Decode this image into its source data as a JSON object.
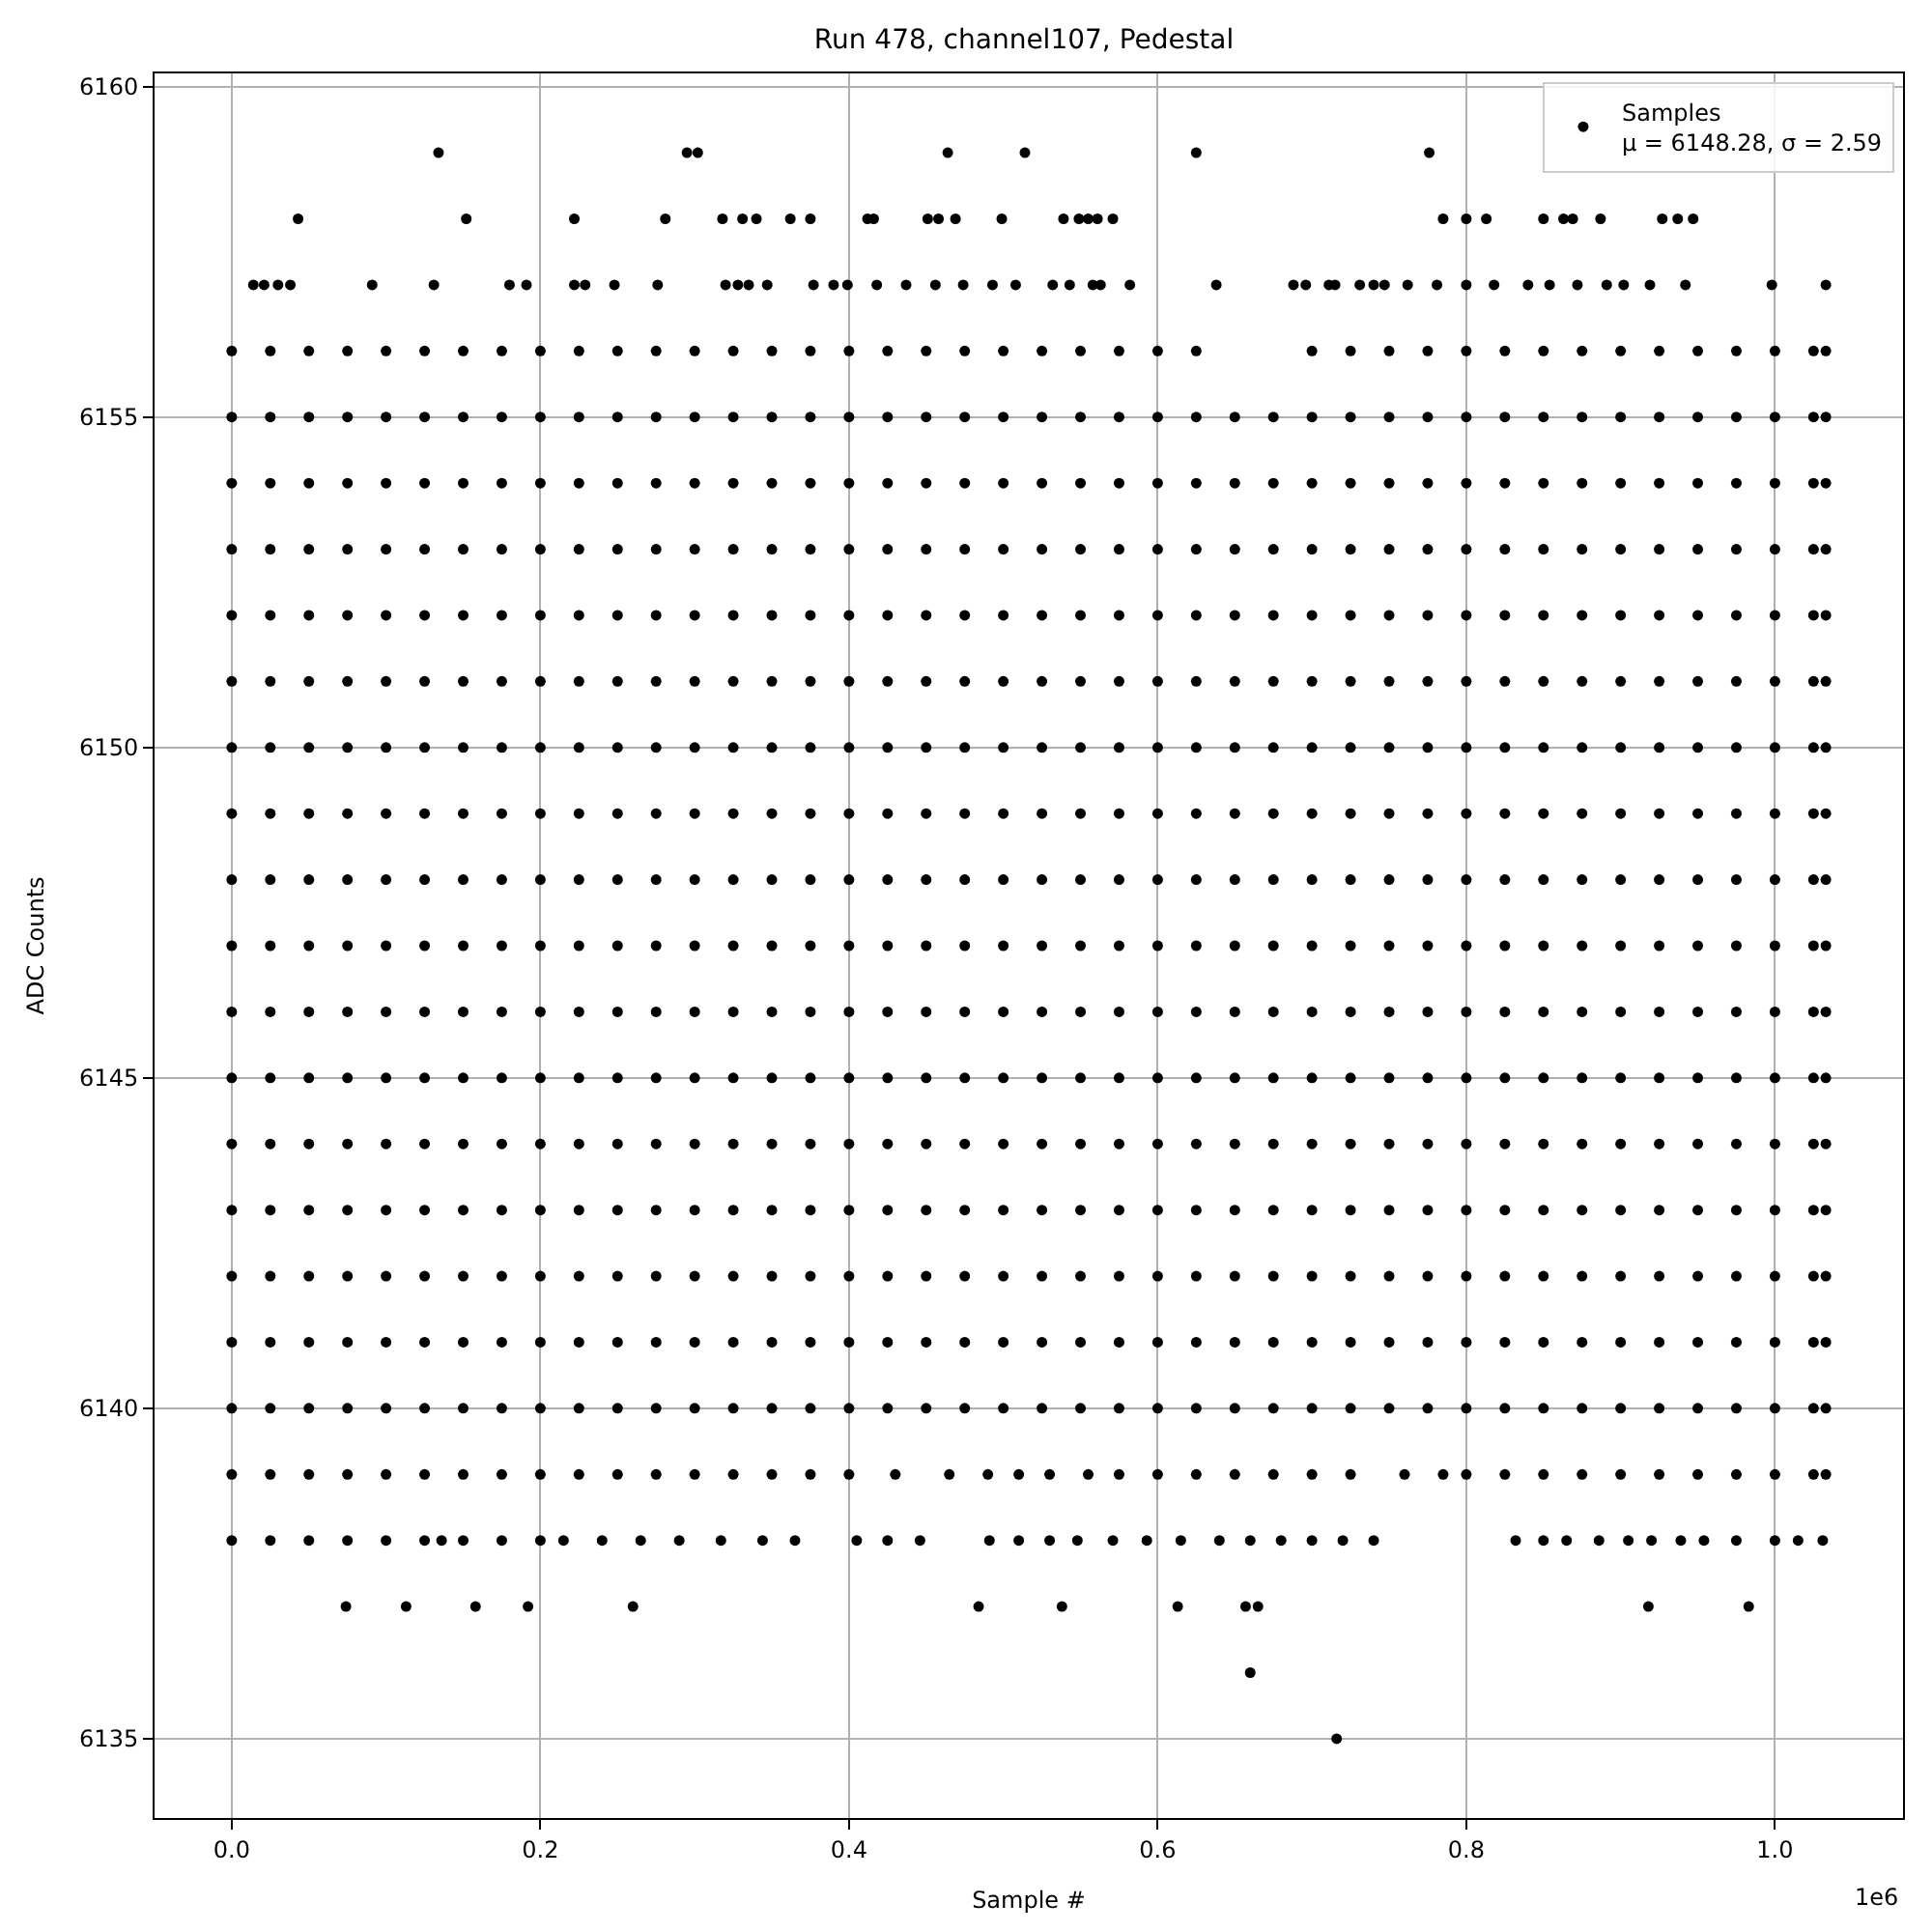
{
  "chart_data": {
    "type": "scatter",
    "title": "Run 478, channel107, Pedestal",
    "xlabel": "Sample #",
    "ylabel": "ADC Counts",
    "annotations": [
      "1e6"
    ],
    "xlim": [
      -0.05,
      1.083
    ],
    "ylim": [
      6133.8,
      6160.2
    ],
    "xticks": [
      {
        "value": 0,
        "label": "0.0"
      },
      0.2,
      0.4,
      0.6,
      0.8,
      {
        "value": 1,
        "label": "1.0"
      }
    ],
    "yticks": [
      6135,
      6140,
      6145,
      6150,
      6155,
      6160
    ],
    "grid": true,
    "legend": "top right",
    "marker": "circle",
    "x": [
      0,
      0.025,
      0.05,
      0.075,
      0.1,
      0.125,
      0.15,
      0.175,
      0.2,
      0.225,
      0.25,
      0.275,
      0.3,
      0.325,
      0.35,
      0.375,
      0.4,
      0.425,
      0.45,
      0.475,
      0.5,
      0.525,
      0.55,
      0.575,
      0.6,
      0.625,
      0.65,
      0.675,
      0.7,
      0.725,
      0.75,
      0.775,
      0.8,
      0.825,
      0.85,
      0.875,
      0.9,
      0.925,
      0.95,
      0.975,
      1.0,
      1.025,
      1.033
    ],
    "series": [
      {
        "name": "Samples\nμ = 6148.28, σ = 2.59",
        "color": "#000000",
        "values": [
          6150,
          6150,
          6150,
          6150,
          6150,
          6150,
          6150,
          6150,
          6150,
          6150,
          6150,
          6150,
          6150,
          6150,
          6150,
          6150,
          6150,
          6150,
          6150,
          6150,
          6150,
          6150,
          6150,
          6150,
          6150,
          6150,
          6150,
          6150,
          6150,
          6150,
          6150,
          6150,
          6150,
          6150,
          6150,
          6150,
          6150,
          6150,
          6150,
          6150,
          6150,
          6150,
          6150
        ]
      },
      {
        "color": "#000000",
        "values": [
          6140,
          6140,
          6140,
          6140,
          6140,
          6140,
          6140,
          6140,
          6140,
          6140,
          6140,
          6140,
          6140,
          6140,
          6140,
          6140,
          6140,
          6140,
          6140,
          6140,
          6140,
          6140,
          6140,
          6140,
          6140,
          6140,
          6140,
          6140,
          6140,
          6140,
          6140,
          6140,
          6140,
          6140,
          6140,
          6140,
          6140,
          6140,
          6140,
          6140,
          6140,
          6140,
          6140
        ]
      },
      {
        "color": "#000000",
        "values": [
          6141,
          6141,
          6141,
          6141,
          6141,
          6141,
          6141,
          6141,
          6141,
          6141,
          6141,
          6141,
          6141,
          6141,
          6141,
          6141,
          6141,
          6141,
          6141,
          6141,
          6141,
          6141,
          6141,
          6141,
          6141,
          6141,
          6141,
          6141,
          6141,
          6141,
          6141,
          6141,
          6141,
          6141,
          6141,
          6141,
          6141,
          6141,
          6141,
          6141,
          6141,
          6141,
          6141
        ]
      },
      {
        "color": "#000000",
        "values": [
          6142,
          6142,
          6142,
          6142,
          6142,
          6142,
          6142,
          6142,
          6142,
          6142,
          6142,
          6142,
          6142,
          6142,
          6142,
          6142,
          6142,
          6142,
          6142,
          6142,
          6142,
          6142,
          6142,
          6142,
          6142,
          6142,
          6142,
          6142,
          6142,
          6142,
          6142,
          6142,
          6142,
          6142,
          6142,
          6142,
          6142,
          6142,
          6142,
          6142,
          6142,
          6142,
          6142
        ]
      },
      {
        "color": "#000000",
        "values": [
          6143,
          6143,
          6143,
          6143,
          6143,
          6143,
          6143,
          6143,
          6143,
          6143,
          6143,
          6143,
          6143,
          6143,
          6143,
          6143,
          6143,
          6143,
          6143,
          6143,
          6143,
          6143,
          6143,
          6143,
          6143,
          6143,
          6143,
          6143,
          6143,
          6143,
          6143,
          6143,
          6143,
          6143,
          6143,
          6143,
          6143,
          6143,
          6143,
          6143,
          6143,
          6143,
          6143
        ]
      },
      {
        "color": "#000000",
        "values": [
          6144,
          6144,
          6144,
          6144,
          6144,
          6144,
          6144,
          6144,
          6144,
          6144,
          6144,
          6144,
          6144,
          6144,
          6144,
          6144,
          6144,
          6144,
          6144,
          6144,
          6144,
          6144,
          6144,
          6144,
          6144,
          6144,
          6144,
          6144,
          6144,
          6144,
          6144,
          6144,
          6144,
          6144,
          6144,
          6144,
          6144,
          6144,
          6144,
          6144,
          6144,
          6144,
          6144
        ]
      },
      {
        "color": "#000000",
        "values": [
          6145,
          6145,
          6145,
          6145,
          6145,
          6145,
          6145,
          6145,
          6145,
          6145,
          6145,
          6145,
          6145,
          6145,
          6145,
          6145,
          6145,
          6145,
          6145,
          6145,
          6145,
          6145,
          6145,
          6145,
          6145,
          6145,
          6145,
          6145,
          6145,
          6145,
          6145,
          6145,
          6145,
          6145,
          6145,
          6145,
          6145,
          6145,
          6145,
          6145,
          6145,
          6145,
          6145
        ]
      },
      {
        "color": "#000000",
        "values": [
          6146,
          6146,
          6146,
          6146,
          6146,
          6146,
          6146,
          6146,
          6146,
          6146,
          6146,
          6146,
          6146,
          6146,
          6146,
          6146,
          6146,
          6146,
          6146,
          6146,
          6146,
          6146,
          6146,
          6146,
          6146,
          6146,
          6146,
          6146,
          6146,
          6146,
          6146,
          6146,
          6146,
          6146,
          6146,
          6146,
          6146,
          6146,
          6146,
          6146,
          6146,
          6146,
          6146
        ]
      },
      {
        "color": "#000000",
        "values": [
          6147,
          6147,
          6147,
          6147,
          6147,
          6147,
          6147,
          6147,
          6147,
          6147,
          6147,
          6147,
          6147,
          6147,
          6147,
          6147,
          6147,
          6147,
          6147,
          6147,
          6147,
          6147,
          6147,
          6147,
          6147,
          6147,
          6147,
          6147,
          6147,
          6147,
          6147,
          6147,
          6147,
          6147,
          6147,
          6147,
          6147,
          6147,
          6147,
          6147,
          6147,
          6147,
          6147
        ]
      },
      {
        "color": "#000000",
        "values": [
          6148,
          6148,
          6148,
          6148,
          6148,
          6148,
          6148,
          6148,
          6148,
          6148,
          6148,
          6148,
          6148,
          6148,
          6148,
          6148,
          6148,
          6148,
          6148,
          6148,
          6148,
          6148,
          6148,
          6148,
          6148,
          6148,
          6148,
          6148,
          6148,
          6148,
          6148,
          6148,
          6148,
          6148,
          6148,
          6148,
          6148,
          6148,
          6148,
          6148,
          6148,
          6148,
          6148
        ]
      },
      {
        "color": "#000000",
        "values": [
          6149,
          6149,
          6149,
          6149,
          6149,
          6149,
          6149,
          6149,
          6149,
          6149,
          6149,
          6149,
          6149,
          6149,
          6149,
          6149,
          6149,
          6149,
          6149,
          6149,
          6149,
          6149,
          6149,
          6149,
          6149,
          6149,
          6149,
          6149,
          6149,
          6149,
          6149,
          6149,
          6149,
          6149,
          6149,
          6149,
          6149,
          6149,
          6149,
          6149,
          6149,
          6149,
          6149
        ]
      },
      {
        "color": "#000000",
        "values": [
          6151,
          6151,
          6151,
          6151,
          6151,
          6151,
          6151,
          6151,
          6151,
          6151,
          6151,
          6151,
          6151,
          6151,
          6151,
          6151,
          6151,
          6151,
          6151,
          6151,
          6151,
          6151,
          6151,
          6151,
          6151,
          6151,
          6151,
          6151,
          6151,
          6151,
          6151,
          6151,
          6151,
          6151,
          6151,
          6151,
          6151,
          6151,
          6151,
          6151,
          6151,
          6151,
          6151
        ]
      },
      {
        "color": "#000000",
        "values": [
          6152,
          6152,
          6152,
          6152,
          6152,
          6152,
          6152,
          6152,
          6152,
          6152,
          6152,
          6152,
          6152,
          6152,
          6152,
          6152,
          6152,
          6152,
          6152,
          6152,
          6152,
          6152,
          6152,
          6152,
          6152,
          6152,
          6152,
          6152,
          6152,
          6152,
          6152,
          6152,
          6152,
          6152,
          6152,
          6152,
          6152,
          6152,
          6152,
          6152,
          6152,
          6152,
          6152
        ]
      },
      {
        "color": "#000000",
        "values": [
          6153,
          6153,
          6153,
          6153,
          6153,
          6153,
          6153,
          6153,
          6153,
          6153,
          6153,
          6153,
          6153,
          6153,
          6153,
          6153,
          6153,
          6153,
          6153,
          6153,
          6153,
          6153,
          6153,
          6153,
          6153,
          6153,
          6153,
          6153,
          6153,
          6153,
          6153,
          6153,
          6153,
          6153,
          6153,
          6153,
          6153,
          6153,
          6153,
          6153,
          6153,
          6153,
          6153
        ]
      },
      {
        "color": "#000000",
        "values": [
          6154,
          6154,
          6154,
          6154,
          6154,
          6154,
          6154,
          6154,
          6154,
          6154,
          6154,
          6154,
          6154,
          6154,
          6154,
          6154,
          6154,
          6154,
          6154,
          6154,
          6154,
          6154,
          6154,
          6154,
          6154,
          6154,
          6154,
          6154,
          6154,
          6154,
          6154,
          6154,
          6154,
          6154,
          6154,
          6154,
          6154,
          6154,
          6154,
          6154,
          6154,
          6154,
          6154
        ]
      },
      {
        "color": "#000000",
        "values": [
          6155,
          6155,
          6155,
          6155,
          6155,
          6155,
          6155,
          6155,
          6155,
          6155,
          6155,
          6155,
          6155,
          6155,
          6155,
          6155,
          6155,
          6155,
          6155,
          6155,
          6155,
          6155,
          6155,
          6155,
          6155,
          6155,
          6155,
          6155,
          6155,
          6155,
          6155,
          6155,
          6155,
          6155,
          6155,
          6155,
          6155,
          6155,
          6155,
          6155,
          6155,
          6155,
          6155
        ]
      },
      {
        "color": "#000000",
        "x": [
          0,
          0.025,
          0.05,
          0.075,
          0.1,
          0.125,
          0.15,
          0.175,
          0.2,
          0.225,
          0.25,
          0.275,
          0.3,
          0.325,
          0.35,
          0.375,
          0.4,
          0.425,
          0.45,
          0.475,
          0.5,
          0.525,
          0.55,
          0.575,
          0.6,
          0.625,
          0.7,
          0.725,
          0.75,
          0.775,
          0.8,
          0.825,
          0.85,
          0.875,
          0.9,
          0.925,
          0.95,
          0.975,
          1.0,
          1.025,
          1.033
        ],
        "values": [
          6156,
          6156,
          6156,
          6156,
          6156,
          6156,
          6156,
          6156,
          6156,
          6156,
          6156,
          6156,
          6156,
          6156,
          6156,
          6156,
          6156,
          6156,
          6156,
          6156,
          6156,
          6156,
          6156,
          6156,
          6156,
          6156,
          6156,
          6156,
          6156,
          6156,
          6156,
          6156,
          6156,
          6156,
          6156,
          6156,
          6156,
          6156,
          6156,
          6156,
          6156
        ]
      },
      {
        "color": "#000000",
        "x": [
          0.014,
          0.021,
          0.03,
          0.038,
          0.091,
          0.131,
          0.18,
          0.191,
          0.222,
          0.229,
          0.248,
          0.276,
          0.32,
          0.328,
          0.335,
          0.347,
          0.377,
          0.39,
          0.399,
          0.418,
          0.437,
          0.456,
          0.474,
          0.493,
          0.508,
          0.532,
          0.543,
          0.558,
          0.563,
          0.582,
          0.638,
          0.688,
          0.696,
          0.711,
          0.715,
          0.731,
          0.74,
          0.747,
          0.762,
          0.781,
          0.8,
          0.818,
          0.84,
          0.854,
          0.872,
          0.891,
          0.902,
          0.919,
          0.942,
          0.998,
          1.033
        ],
        "values": [
          6157,
          6157,
          6157,
          6157,
          6157,
          6157,
          6157,
          6157,
          6157,
          6157,
          6157,
          6157,
          6157,
          6157,
          6157,
          6157,
          6157,
          6157,
          6157,
          6157,
          6157,
          6157,
          6157,
          6157,
          6157,
          6157,
          6157,
          6157,
          6157,
          6157,
          6157,
          6157,
          6157,
          6157,
          6157,
          6157,
          6157,
          6157,
          6157,
          6157,
          6157,
          6157,
          6157,
          6157,
          6157,
          6157,
          6157,
          6157,
          6157,
          6157,
          6157
        ]
      },
      {
        "color": "#000000",
        "x": [
          0.043,
          0.152,
          0.222,
          0.281,
          0.318,
          0.331,
          0.34,
          0.362,
          0.375,
          0.412,
          0.416,
          0.451,
          0.458,
          0.469,
          0.499,
          0.539,
          0.549,
          0.555,
          0.561,
          0.571,
          0.785,
          0.8,
          0.813,
          0.85,
          0.863,
          0.869,
          0.887,
          0.927,
          0.937,
          0.947
        ],
        "values": [
          6158,
          6158,
          6158,
          6158,
          6158,
          6158,
          6158,
          6158,
          6158,
          6158,
          6158,
          6158,
          6158,
          6158,
          6158,
          6158,
          6158,
          6158,
          6158,
          6158,
          6158,
          6158,
          6158,
          6158,
          6158,
          6158,
          6158,
          6158,
          6158,
          6158
        ]
      },
      {
        "color": "#000000",
        "x": [
          0.134,
          0.295,
          0.302,
          0.464,
          0.514,
          0.625,
          0.776
        ],
        "values": [
          6159,
          6159,
          6159,
          6159,
          6159,
          6159,
          6159
        ]
      },
      {
        "color": "#000000",
        "x": [
          0,
          0.025,
          0.05,
          0.075,
          0.1,
          0.125,
          0.15,
          0.175,
          0.2,
          0.225,
          0.25,
          0.275,
          0.3,
          0.325,
          0.35,
          0.375,
          0.4,
          0.43,
          0.465,
          0.49,
          0.51,
          0.53,
          0.555,
          0.575,
          0.6,
          0.625,
          0.65,
          0.675,
          0.7,
          0.725,
          0.76,
          0.785,
          0.8,
          0.825,
          0.85,
          0.875,
          0.9,
          0.925,
          0.95,
          0.975,
          1.0,
          1.025,
          1.033
        ],
        "values": [
          6139,
          6139,
          6139,
          6139,
          6139,
          6139,
          6139,
          6139,
          6139,
          6139,
          6139,
          6139,
          6139,
          6139,
          6139,
          6139,
          6139,
          6139,
          6139,
          6139,
          6139,
          6139,
          6139,
          6139,
          6139,
          6139,
          6139,
          6139,
          6139,
          6139,
          6139,
          6139,
          6139,
          6139,
          6139,
          6139,
          6139,
          6139,
          6139,
          6139,
          6139,
          6139,
          6139
        ]
      },
      {
        "color": "#000000",
        "x": [
          0,
          0.025,
          0.05,
          0.075,
          0.1,
          0.125,
          0.136,
          0.15,
          0.175,
          0.2,
          0.215,
          0.24,
          0.265,
          0.29,
          0.317,
          0.344,
          0.365,
          0.405,
          0.425,
          0.446,
          0.491,
          0.51,
          0.53,
          0.548,
          0.571,
          0.593,
          0.615,
          0.64,
          0.66,
          0.68,
          0.7,
          0.72,
          0.74,
          0.832,
          0.85,
          0.865,
          0.886,
          0.905,
          0.92,
          0.939,
          0.954,
          0.975,
          1.0,
          1.015,
          1.031
        ],
        "values": [
          6138,
          6138,
          6138,
          6138,
          6138,
          6138,
          6138,
          6138,
          6138,
          6138,
          6138,
          6138,
          6138,
          6138,
          6138,
          6138,
          6138,
          6138,
          6138,
          6138,
          6138,
          6138,
          6138,
          6138,
          6138,
          6138,
          6138,
          6138,
          6138,
          6138,
          6138,
          6138,
          6138,
          6138,
          6138,
          6138,
          6138,
          6138,
          6138,
          6138,
          6138,
          6138,
          6138,
          6138,
          6138
        ]
      },
      {
        "color": "#000000",
        "x": [
          0.074,
          0.113,
          0.158,
          0.192,
          0.26,
          0.484,
          0.538,
          0.613,
          0.657,
          0.665,
          0.918,
          0.983
        ],
        "values": [
          6137,
          6137,
          6137,
          6137,
          6137,
          6137,
          6137,
          6137,
          6137,
          6137,
          6137,
          6137
        ]
      },
      {
        "color": "#000000",
        "x": [
          0.66
        ],
        "values": [
          6136
        ]
      },
      {
        "color": "#000000",
        "x": [
          0.716
        ],
        "values": [
          6135
        ]
      }
    ]
  }
}
